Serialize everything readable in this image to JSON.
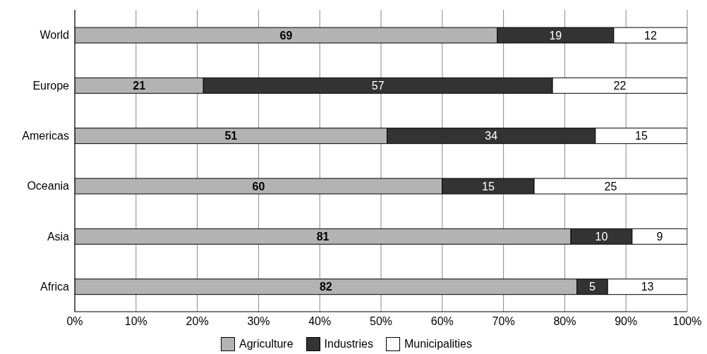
{
  "chart_data": {
    "type": "bar",
    "orientation": "horizontal",
    "stacked": true,
    "categories": [
      "World",
      "Europe",
      "Americas",
      "Oceania",
      "Asia",
      "Africa"
    ],
    "series": [
      {
        "name": "Agriculture",
        "color": "#b3b3b3",
        "values": [
          69,
          21,
          51,
          60,
          81,
          82
        ]
      },
      {
        "name": "Industries",
        "color": "#333333",
        "values": [
          19,
          57,
          34,
          15,
          10,
          5
        ]
      },
      {
        "name": "Municipalities",
        "color": "#ffffff",
        "values": [
          12,
          22,
          15,
          25,
          9,
          13
        ]
      }
    ],
    "xlim": [
      0,
      100
    ],
    "xticks": [
      {
        "value": 0,
        "label": "0%"
      },
      {
        "value": 10,
        "label": "10%"
      },
      {
        "value": 20,
        "label": "20%"
      },
      {
        "value": 30,
        "label": "30%"
      },
      {
        "value": 40,
        "label": "40%"
      },
      {
        "value": 50,
        "label": "50%"
      },
      {
        "value": 60,
        "label": "60%"
      },
      {
        "value": 70,
        "label": "70%"
      },
      {
        "value": 80,
        "label": "80%"
      },
      {
        "value": 90,
        "label": "90%"
      },
      {
        "value": 100,
        "label": "100%"
      }
    ],
    "grid": "x",
    "legend": "bottom",
    "data_labels": true
  }
}
